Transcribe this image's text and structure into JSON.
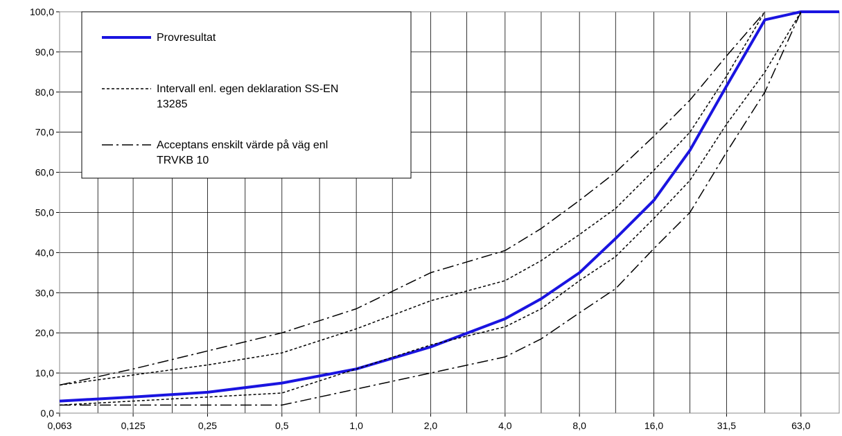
{
  "chart_data": {
    "type": "line",
    "x_scale": "log",
    "xlim": [
      0.063,
      90
    ],
    "ylim": [
      0,
      100
    ],
    "grid": true,
    "legend_placement": "top-left",
    "x_tick_labels": [
      "0,063",
      "0,125",
      "0,25",
      "0,5",
      "1,0",
      "2,0",
      "4,0",
      "8,0",
      "16,0",
      "31,5",
      "63,0"
    ],
    "y_tick_labels": [
      "0,0",
      "10,0",
      "20,0",
      "30,0",
      "40,0",
      "50,0",
      "60,0",
      "70,0",
      "80,0",
      "90,0",
      "100,0"
    ],
    "x_gridlines": [
      0.063,
      0.09,
      0.125,
      0.18,
      0.25,
      0.355,
      0.5,
      0.71,
      1.0,
      1.4,
      2.0,
      2.8,
      4.0,
      5.6,
      8.0,
      11.2,
      16.0,
      22.4,
      31.5,
      45.0,
      63.0,
      90.0
    ],
    "series": [
      {
        "name": "Provresultat",
        "style": "solid",
        "color": "#1a14e0",
        "x": [
          0.063,
          0.125,
          0.25,
          0.5,
          1.0,
          2.0,
          4.0,
          5.6,
          8.0,
          11.2,
          16.0,
          22.4,
          31.5,
          45.0,
          63.0,
          90.0
        ],
        "y": [
          3.0,
          4.0,
          5.2,
          7.5,
          11.0,
          16.5,
          23.5,
          28.5,
          35.0,
          43.5,
          53.0,
          65.5,
          81.5,
          98.0,
          100.0,
          100.0
        ]
      },
      {
        "name": "Intervall enl. egen deklaration SS-EN 13285",
        "style": "dotted",
        "color": "#000000",
        "x": [
          0.063,
          0.125,
          0.25,
          0.5,
          1.0,
          2.0,
          4.0,
          5.6,
          8.0,
          11.2,
          16.0,
          22.4,
          31.5,
          45.0
        ],
        "y": [
          7.0,
          9.5,
          12.0,
          15.0,
          21.0,
          28.0,
          33.0,
          38.0,
          44.5,
          51.0,
          60.5,
          70.0,
          84.0,
          100.0
        ]
      },
      {
        "name": "",
        "style": "dotted",
        "color": "#000000",
        "x": [
          0.063,
          0.125,
          0.25,
          0.5,
          1.0,
          2.0,
          4.0,
          5.6,
          8.0,
          11.2,
          16.0,
          22.4,
          31.5,
          45.0,
          63.0
        ],
        "y": [
          2.0,
          3.0,
          4.0,
          5.0,
          11.0,
          17.0,
          21.5,
          26.0,
          33.0,
          39.0,
          48.5,
          58.0,
          72.0,
          85.0,
          100.0
        ]
      },
      {
        "name": "Acceptans enskilt värde på väg enl TRVKB 10",
        "style": "dashdot",
        "color": "#000000",
        "x": [
          0.063,
          0.125,
          0.25,
          0.5,
          1.0,
          2.0,
          4.0,
          5.6,
          8.0,
          11.2,
          16.0,
          22.4,
          31.5,
          45.0
        ],
        "y": [
          7.0,
          11.0,
          15.5,
          20.0,
          26.0,
          35.0,
          40.5,
          46.0,
          53.0,
          60.0,
          69.0,
          78.0,
          89.0,
          100.0
        ]
      },
      {
        "name": "",
        "style": "dashdot",
        "color": "#000000",
        "x": [
          0.063,
          0.125,
          0.25,
          0.5,
          1.0,
          2.0,
          4.0,
          5.6,
          8.0,
          11.2,
          16.0,
          22.4,
          31.5,
          45.0,
          63.0
        ],
        "y": [
          2.0,
          2.0,
          2.0,
          2.0,
          6.0,
          10.0,
          14.0,
          18.5,
          25.0,
          31.0,
          41.0,
          50.0,
          65.0,
          80.0,
          100.0
        ]
      }
    ],
    "legend": [
      {
        "label": "Provresultat",
        "style": "solid"
      },
      {
        "label": "Intervall enl. egen deklaration SS-EN",
        "label_line2": "13285",
        "style": "dotted"
      },
      {
        "label": "Acceptans enskilt värde på väg enl",
        "label_line2": "TRVKB 10",
        "style": "dashdot"
      }
    ]
  }
}
